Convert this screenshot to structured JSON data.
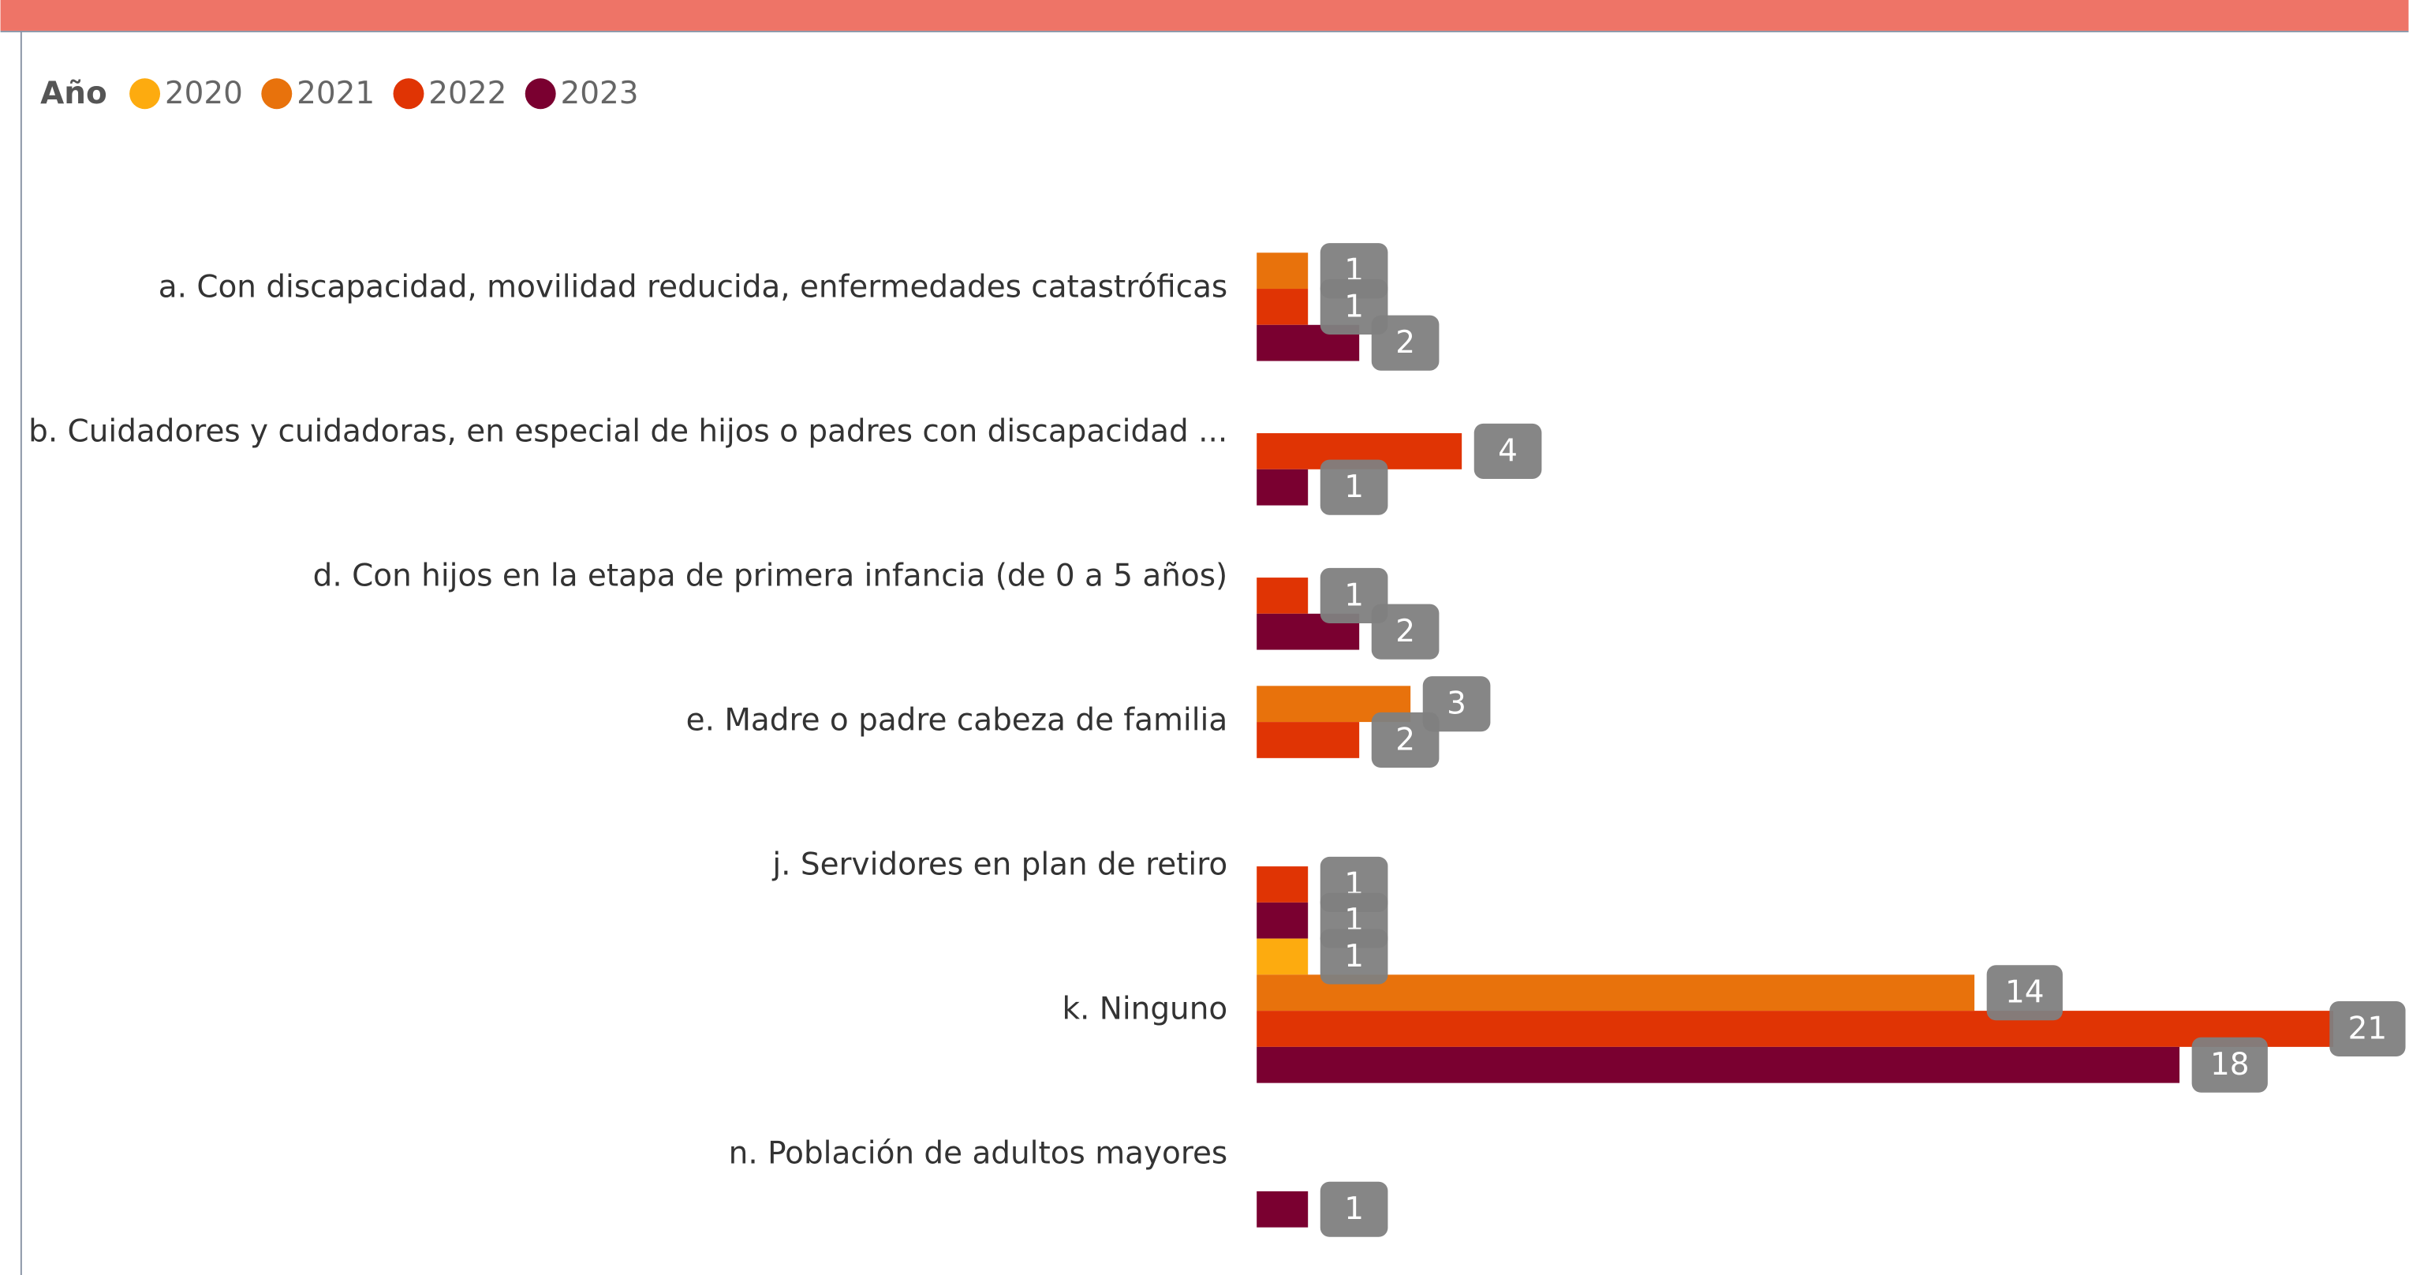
{
  "chart_data": {
    "type": "barh",
    "legend_title": "Año",
    "categories": [
      "a. Con discapacidad, movilidad reducida, enfermedades catastróficas",
      "b. Cuidadores y cuidadoras, en especial de hijos o padres con discapacidad ...",
      "d. Con hijos en la etapa de primera infancia (de 0 a 5 años)",
      "e. Madre o padre cabeza de familia",
      "j. Servidores en plan de retiro",
      "k. Ninguno",
      "n. Población de adultos mayores"
    ],
    "series": [
      {
        "name": "2020",
        "color": "#fdab0f",
        "values": [
          null,
          null,
          null,
          null,
          null,
          1,
          null
        ]
      },
      {
        "name": "2021",
        "color": "#e8720c",
        "values": [
          1,
          null,
          null,
          3,
          null,
          14,
          null
        ]
      },
      {
        "name": "2022",
        "color": "#e03404",
        "values": [
          1,
          4,
          1,
          2,
          1,
          21,
          null
        ]
      },
      {
        "name": "2023",
        "color": "#7a0030",
        "values": [
          2,
          1,
          2,
          null,
          1,
          18,
          1
        ]
      }
    ],
    "xlim": [
      0,
      21
    ],
    "legend": "top-left"
  }
}
